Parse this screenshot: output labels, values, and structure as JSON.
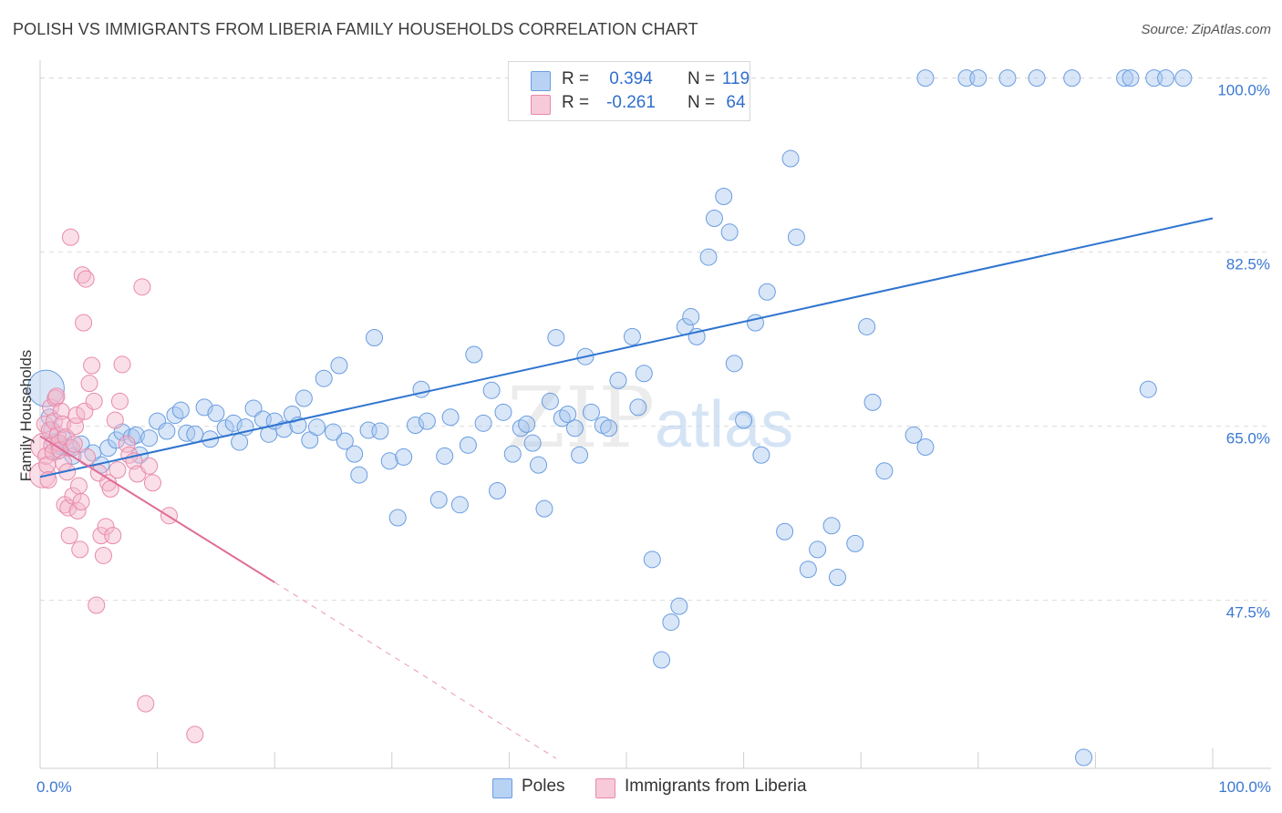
{
  "title": "POLISH VS IMMIGRANTS FROM LIBERIA FAMILY HOUSEHOLDS CORRELATION CHART",
  "source": "Source: ZipAtlas.com",
  "watermark": {
    "zip": "ZIP",
    "atlas": "atlas"
  },
  "legend": {
    "r_label": "R =",
    "n_label": "N =",
    "rows": [
      {
        "r": "0.394",
        "n": "119"
      },
      {
        "r": "-0.261",
        "n": "64"
      }
    ]
  },
  "bottom_legend": {
    "poles": "Poles",
    "liberia": "Immigrants from Liberia"
  },
  "colors": {
    "blue_fill": "#a8c8f0",
    "blue_stroke": "#6a9de0",
    "blue_line": "#2f74d0",
    "pink_fill": "#f5b8cc",
    "pink_stroke": "#e88aa8",
    "pink_line": "#e06d97",
    "grid": "#dcdcdc",
    "tick_label": "#3a78d4"
  },
  "chart_data": {
    "type": "scatter",
    "title": "POLISH VS IMMIGRANTS FROM LIBERIA FAMILY HOUSEHOLDS CORRELATION CHART",
    "xlabel": "",
    "ylabel": "Family Households",
    "xlim": [
      0,
      100
    ],
    "ylim": [
      30.6,
      101.8
    ],
    "x_tick_labels": [
      {
        "value": 0,
        "label": "0.0%"
      },
      {
        "value": 100,
        "label": "100.0%"
      }
    ],
    "y_ticks": [
      {
        "value": 100.0,
        "label": "100.0%"
      },
      {
        "value": 82.5,
        "label": "82.5%"
      },
      {
        "value": 65.0,
        "label": "65.0%"
      },
      {
        "value": 47.5,
        "label": "47.5%"
      }
    ],
    "series": [
      {
        "name": "Poles",
        "color": "#a8c8f0",
        "r": 0.394,
        "n": 119,
        "trend": {
          "x": [
            0,
            100
          ],
          "y": [
            59.9,
            85.9
          ]
        },
        "points": [
          [
            0.5,
            68.8
          ],
          [
            0.8,
            65.9
          ],
          [
            1.0,
            64.6
          ],
          [
            1.2,
            63.4
          ],
          [
            1.5,
            62.5
          ],
          [
            1.7,
            63.0
          ],
          [
            2.0,
            63.7
          ],
          [
            2.5,
            62.9
          ],
          [
            2.8,
            62.0
          ],
          [
            3.5,
            63.2
          ],
          [
            4.5,
            62.3
          ],
          [
            5.2,
            61.1
          ],
          [
            5.8,
            62.8
          ],
          [
            6.5,
            63.6
          ],
          [
            7.0,
            64.4
          ],
          [
            7.8,
            63.9
          ],
          [
            8.2,
            64.1
          ],
          [
            8.5,
            62.1
          ],
          [
            9.3,
            63.8
          ],
          [
            10.0,
            65.5
          ],
          [
            10.8,
            64.5
          ],
          [
            11.5,
            66.1
          ],
          [
            12.0,
            66.6
          ],
          [
            12.5,
            64.3
          ],
          [
            13.2,
            64.2
          ],
          [
            14.0,
            66.9
          ],
          [
            14.5,
            63.7
          ],
          [
            15.0,
            66.3
          ],
          [
            15.8,
            64.8
          ],
          [
            16.5,
            65.3
          ],
          [
            17.0,
            63.4
          ],
          [
            17.5,
            64.9
          ],
          [
            18.2,
            66.8
          ],
          [
            19.0,
            65.7
          ],
          [
            19.5,
            64.2
          ],
          [
            20.0,
            65.5
          ],
          [
            20.8,
            64.7
          ],
          [
            21.5,
            66.2
          ],
          [
            22.0,
            65.1
          ],
          [
            22.5,
            67.8
          ],
          [
            23.0,
            63.6
          ],
          [
            23.6,
            64.9
          ],
          [
            24.2,
            69.8
          ],
          [
            25.0,
            64.4
          ],
          [
            25.5,
            71.1
          ],
          [
            26.0,
            63.5
          ],
          [
            26.8,
            62.2
          ],
          [
            27.2,
            60.1
          ],
          [
            28.0,
            64.6
          ],
          [
            28.5,
            73.9
          ],
          [
            29.0,
            64.5
          ],
          [
            29.8,
            61.5
          ],
          [
            30.5,
            55.8
          ],
          [
            31.0,
            61.9
          ],
          [
            32.0,
            65.1
          ],
          [
            32.5,
            68.7
          ],
          [
            33.0,
            65.5
          ],
          [
            34.0,
            57.6
          ],
          [
            34.5,
            62.0
          ],
          [
            35.0,
            65.9
          ],
          [
            35.8,
            57.1
          ],
          [
            36.5,
            63.1
          ],
          [
            37.0,
            72.2
          ],
          [
            37.8,
            65.3
          ],
          [
            38.5,
            68.6
          ],
          [
            39.0,
            58.5
          ],
          [
            39.5,
            66.4
          ],
          [
            40.3,
            62.2
          ],
          [
            41.0,
            64.8
          ],
          [
            41.5,
            65.2
          ],
          [
            42.0,
            63.3
          ],
          [
            42.5,
            61.1
          ],
          [
            43.0,
            56.7
          ],
          [
            43.5,
            67.5
          ],
          [
            44.0,
            73.9
          ],
          [
            44.5,
            65.8
          ],
          [
            45.0,
            66.2
          ],
          [
            45.6,
            64.8
          ],
          [
            46.0,
            62.1
          ],
          [
            46.5,
            72.0
          ],
          [
            47.0,
            66.4
          ],
          [
            48.0,
            65.1
          ],
          [
            48.5,
            64.8
          ],
          [
            49.3,
            69.6
          ],
          [
            50.5,
            74.0
          ],
          [
            51.0,
            66.9
          ],
          [
            51.5,
            70.3
          ],
          [
            52.2,
            51.6
          ],
          [
            53.0,
            41.5
          ],
          [
            53.8,
            45.3
          ],
          [
            54.5,
            46.9
          ],
          [
            55.0,
            75.0
          ],
          [
            55.5,
            76.0
          ],
          [
            56.0,
            74.0
          ],
          [
            57.0,
            82.0
          ],
          [
            57.5,
            85.9
          ],
          [
            58.3,
            88.1
          ],
          [
            58.8,
            84.5
          ],
          [
            59.2,
            71.3
          ],
          [
            60.0,
            65.6
          ],
          [
            61.0,
            75.4
          ],
          [
            61.5,
            62.1
          ],
          [
            62.0,
            78.5
          ],
          [
            63.5,
            54.4
          ],
          [
            64.0,
            91.9
          ],
          [
            64.5,
            84.0
          ],
          [
            65.5,
            50.6
          ],
          [
            66.3,
            52.6
          ],
          [
            67.5,
            55.0
          ],
          [
            68.0,
            49.8
          ],
          [
            69.5,
            53.2
          ],
          [
            70.5,
            75.0
          ],
          [
            71.0,
            67.4
          ],
          [
            72.0,
            60.5
          ],
          [
            74.5,
            64.1
          ],
          [
            75.5,
            62.9
          ],
          [
            75.5,
            100.0
          ],
          [
            79.0,
            100.0
          ],
          [
            80.0,
            100.0
          ],
          [
            82.5,
            100.0
          ],
          [
            85.0,
            100.0
          ],
          [
            88.0,
            100.0
          ],
          [
            89.0,
            31.7
          ],
          [
            92.5,
            100.0
          ],
          [
            93.0,
            100.0
          ],
          [
            95.0,
            100.0
          ],
          [
            96.0,
            100.0
          ],
          [
            94.5,
            68.7
          ],
          [
            97.5,
            100.0
          ]
        ]
      },
      {
        "name": "Immigrants from Liberia",
        "color": "#f5b8cc",
        "r": -0.261,
        "n": 64,
        "trend": {
          "x": [
            0,
            20
          ],
          "y": [
            64.0,
            49.3
          ]
        },
        "trend_dashed": {
          "x": [
            20,
            44
          ],
          "y": [
            49.3,
            31.6
          ]
        },
        "points": [
          [
            0.2,
            60.1
          ],
          [
            0.3,
            63.0
          ],
          [
            0.4,
            65.2
          ],
          [
            0.5,
            62.0
          ],
          [
            0.6,
            61.1
          ],
          [
            0.7,
            59.6
          ],
          [
            0.8,
            64.6
          ],
          [
            0.9,
            66.9
          ],
          [
            1.0,
            63.1
          ],
          [
            1.1,
            62.4
          ],
          [
            1.2,
            65.5
          ],
          [
            1.3,
            67.8
          ],
          [
            1.4,
            68.0
          ],
          [
            1.5,
            64.1
          ],
          [
            1.6,
            63.3
          ],
          [
            1.7,
            62.6
          ],
          [
            1.8,
            66.5
          ],
          [
            1.9,
            65.2
          ],
          [
            2.0,
            61.3
          ],
          [
            2.1,
            57.1
          ],
          [
            2.2,
            63.9
          ],
          [
            2.3,
            60.4
          ],
          [
            2.4,
            56.8
          ],
          [
            2.5,
            54.0
          ],
          [
            2.6,
            84.0
          ],
          [
            2.7,
            62.8
          ],
          [
            2.8,
            58.0
          ],
          [
            2.9,
            63.2
          ],
          [
            3.0,
            65.0
          ],
          [
            3.1,
            66.1
          ],
          [
            3.2,
            56.5
          ],
          [
            3.3,
            59.0
          ],
          [
            3.4,
            52.6
          ],
          [
            3.5,
            57.4
          ],
          [
            3.6,
            80.2
          ],
          [
            3.7,
            75.4
          ],
          [
            3.8,
            66.5
          ],
          [
            3.9,
            79.8
          ],
          [
            4.0,
            61.9
          ],
          [
            4.2,
            69.3
          ],
          [
            4.4,
            71.1
          ],
          [
            4.6,
            67.5
          ],
          [
            4.8,
            47.0
          ],
          [
            5.0,
            60.3
          ],
          [
            5.2,
            54.0
          ],
          [
            5.4,
            52.0
          ],
          [
            5.6,
            54.9
          ],
          [
            5.8,
            59.3
          ],
          [
            6.0,
            58.7
          ],
          [
            6.2,
            54.0
          ],
          [
            6.4,
            65.6
          ],
          [
            6.6,
            60.6
          ],
          [
            6.8,
            67.5
          ],
          [
            7.0,
            71.2
          ],
          [
            7.4,
            63.2
          ],
          [
            7.6,
            62.1
          ],
          [
            8.0,
            61.5
          ],
          [
            8.3,
            60.2
          ],
          [
            8.7,
            79.0
          ],
          [
            9.0,
            37.1
          ],
          [
            9.3,
            61.0
          ],
          [
            9.6,
            59.3
          ],
          [
            11.0,
            56.0
          ],
          [
            13.2,
            34.0
          ]
        ]
      }
    ]
  }
}
